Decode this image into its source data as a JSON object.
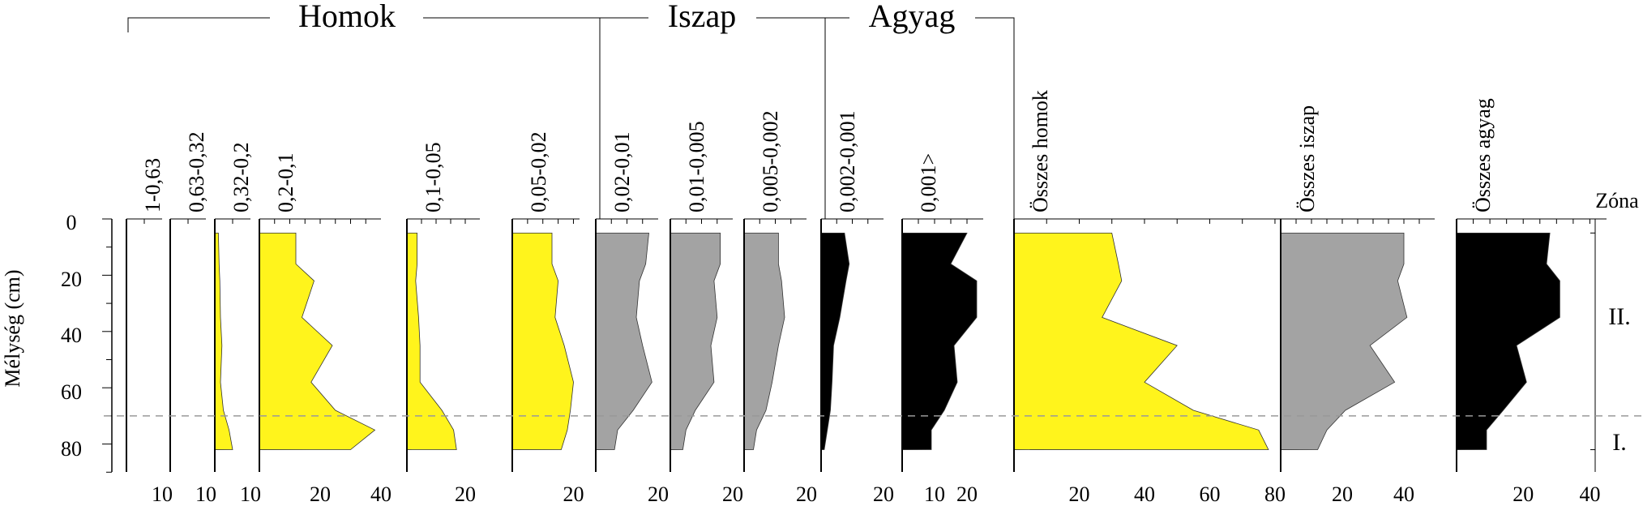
{
  "chart_data": {
    "type": "area",
    "ylabel": "Mélység (cm)",
    "yaxis_ticks": [
      "0",
      "20",
      "40",
      "60",
      "80"
    ],
    "ylim": [
      0,
      90
    ],
    "depths": [
      5,
      16,
      22,
      35,
      45,
      58,
      68,
      75,
      82
    ],
    "zone_header": "Zóna",
    "zone_boundary_depth": 70,
    "zones": [
      {
        "label": "II.",
        "top": 5,
        "bottom": 70
      },
      {
        "label": "I.",
        "top": 70,
        "bottom": 82
      }
    ],
    "groups": [
      {
        "name": "Homok",
        "columns": [
          0,
          1,
          2,
          3,
          4,
          5
        ]
      },
      {
        "name": "Iszap",
        "columns": [
          6,
          7,
          8
        ]
      },
      {
        "name": "Agyag",
        "columns": [
          9,
          10
        ]
      }
    ],
    "panels": [
      {
        "name": "1-0,63",
        "color": "#fff41c",
        "xlim": [
          0,
          10
        ],
        "ticks": [
          "10"
        ],
        "values": [
          0,
          0,
          0,
          0,
          0,
          0,
          0,
          0,
          0
        ]
      },
      {
        "name": "0,63-0,32",
        "color": "#fff41c",
        "xlim": [
          0,
          10
        ],
        "ticks": [
          "10"
        ],
        "values": [
          0,
          0,
          0,
          0,
          0,
          0,
          0,
          0,
          0
        ]
      },
      {
        "name": "0,32-0,2",
        "color": "#fff41c",
        "xlim": [
          0,
          10
        ],
        "ticks": [
          "10"
        ],
        "values": [
          1,
          1.2,
          1.4,
          1.6,
          2,
          1.6,
          2.4,
          4,
          5
        ]
      },
      {
        "name": "0,2-0,1",
        "color": "#fff41c",
        "xlim": [
          0,
          40
        ],
        "ticks": [
          "20",
          "40"
        ],
        "values": [
          12,
          12,
          18,
          14,
          24,
          17,
          25,
          38,
          30
        ]
      },
      {
        "name": "0,1-0,05",
        "color": "#fff41c",
        "xlim": [
          0,
          25
        ],
        "ticks": [
          "20"
        ],
        "values": [
          3.5,
          3.5,
          3,
          4,
          4.5,
          4.5,
          12,
          16,
          17
        ]
      },
      {
        "name": "0,05-0,02",
        "color": "#fff41c",
        "xlim": [
          0,
          22
        ],
        "ticks": [
          "20"
        ],
        "values": [
          13,
          13,
          15,
          14,
          17,
          20,
          19,
          18,
          16
        ]
      },
      {
        "name": "0,02-0,01",
        "color": "#a3a3a3",
        "xlim": [
          0,
          20
        ],
        "ticks": [
          "20"
        ],
        "values": [
          17,
          16,
          14,
          13,
          15,
          18,
          12,
          7,
          6
        ]
      },
      {
        "name": "0,01-0,005",
        "color": "#a3a3a3",
        "xlim": [
          0,
          20
        ],
        "ticks": [
          "20"
        ],
        "values": [
          16,
          16,
          14,
          15,
          13,
          14,
          8,
          5,
          4
        ]
      },
      {
        "name": "0,005-0,002",
        "color": "#a3a3a3",
        "xlim": [
          0,
          20
        ],
        "ticks": [
          "20"
        ],
        "values": [
          11,
          11,
          12,
          13,
          11,
          9,
          7,
          4,
          3
        ]
      },
      {
        "name": "0,002-0,001",
        "color": "#000000",
        "xlim": [
          0,
          20
        ],
        "ticks": [
          "20"
        ],
        "values": [
          7.5,
          9,
          8,
          6,
          4,
          3.5,
          3,
          2,
          1
        ]
      },
      {
        "name": "0,001>",
        "color": "#000000",
        "xlim": [
          0,
          25
        ],
        "ticks": [
          "10",
          "20"
        ],
        "values": [
          20,
          15,
          23,
          23,
          16,
          17,
          13,
          9,
          9
        ]
      },
      {
        "name": "Összes homok",
        "color": "#fff41c",
        "xlim": [
          0,
          82
        ],
        "ticks": [
          "20",
          "40",
          "60",
          "80"
        ],
        "values": [
          30,
          32,
          33,
          27,
          50,
          40,
          55,
          75,
          78
        ]
      },
      {
        "name": "Összes iszap",
        "color": "#a3a3a3",
        "xlim": [
          0,
          50
        ],
        "ticks": [
          "20",
          "40"
        ],
        "values": [
          40,
          40,
          38,
          41,
          29,
          37,
          21,
          15,
          12
        ]
      },
      {
        "name": "Összes agyag",
        "color": "#000000",
        "xlim": [
          0,
          45
        ],
        "ticks": [
          "20",
          "40"
        ],
        "values": [
          28,
          27,
          31,
          31,
          18,
          21,
          14,
          9,
          9
        ]
      }
    ]
  }
}
